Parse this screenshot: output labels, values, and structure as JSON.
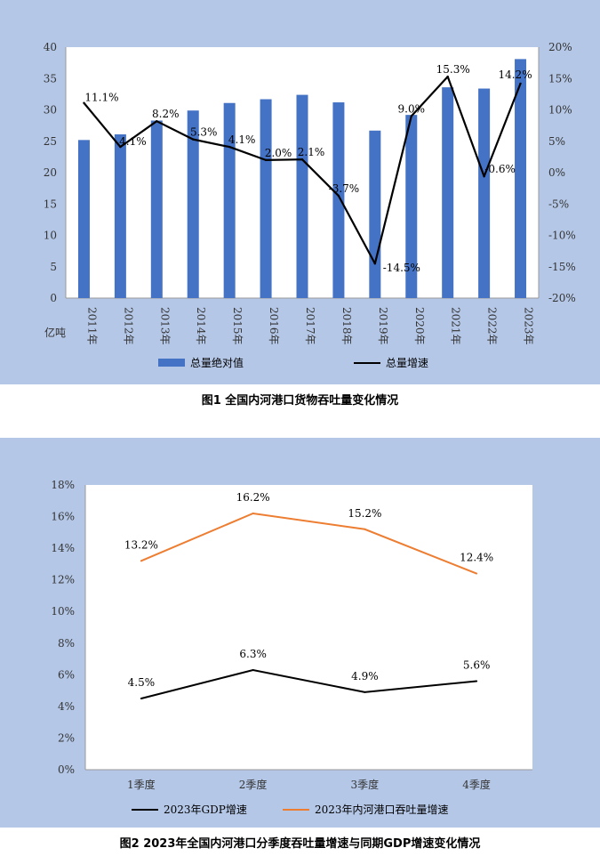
{
  "chart_data": [
    {
      "type": "bar+line",
      "title": "图1 全国内河港口货物吞吐量变化情况",
      "ylabel": "亿吨",
      "categories": [
        "2011年",
        "2012年",
        "2013年",
        "2014年",
        "2015年",
        "2016年",
        "2017年",
        "2018年",
        "2019年",
        "2020年",
        "2021年",
        "2022年",
        "2023年"
      ],
      "ylim": [
        0,
        40
      ],
      "y_ticks": [
        "0",
        "5",
        "10",
        "15",
        "20",
        "25",
        "30",
        "35",
        "40"
      ],
      "y2lim": [
        -20,
        20
      ],
      "y2_ticks": [
        "-20%",
        "-15%",
        "-10%",
        "-5%",
        "0%",
        "5%",
        "10%",
        "15%",
        "20%"
      ],
      "series": [
        {
          "name": "总量绝对值",
          "type": "bar",
          "axis": "left",
          "color": "#4472c4",
          "values": [
            25.2,
            26.1,
            28.3,
            29.9,
            31.1,
            31.7,
            32.4,
            31.2,
            26.7,
            29.2,
            33.6,
            33.4,
            38.1
          ]
        },
        {
          "name": "总量增速",
          "type": "line",
          "axis": "right",
          "color": "#000000",
          "values": [
            11.1,
            4.1,
            8.2,
            5.3,
            4.1,
            2.0,
            2.1,
            -3.7,
            -14.5,
            9.0,
            15.3,
            -0.6,
            14.2
          ],
          "labels": [
            "11.1%",
            "4.1%",
            "8.2%",
            "5.3%",
            "4.1%",
            "2.0%",
            "2.1%",
            "-3.7%",
            "-14.5%",
            "9.0%",
            "15.3%",
            "-0.6%",
            "14.2%"
          ]
        }
      ],
      "legend": "bottom"
    },
    {
      "type": "line",
      "title": "图2 2023年全国内河港口分季度吞吐量增速与同期GDP增速变化情况",
      "categories": [
        "1季度",
        "2季度",
        "3季度",
        "4季度"
      ],
      "ylim": [
        0,
        18
      ],
      "y_ticks": [
        "0%",
        "2%",
        "4%",
        "6%",
        "8%",
        "10%",
        "12%",
        "14%",
        "16%",
        "18%"
      ],
      "series": [
        {
          "name": "2023年GDP增速",
          "color": "#000000",
          "values": [
            4.5,
            6.3,
            4.9,
            5.6
          ],
          "labels": [
            "4.5%",
            "6.3%",
            "4.9%",
            "5.6%"
          ]
        },
        {
          "name": "2023年内河港口吞吐量增速",
          "color": "#ed7d31",
          "values": [
            13.2,
            16.2,
            15.2,
            12.4
          ],
          "labels": [
            "13.2%",
            "16.2%",
            "15.2%",
            "12.4%"
          ]
        }
      ],
      "legend": "bottom"
    }
  ]
}
